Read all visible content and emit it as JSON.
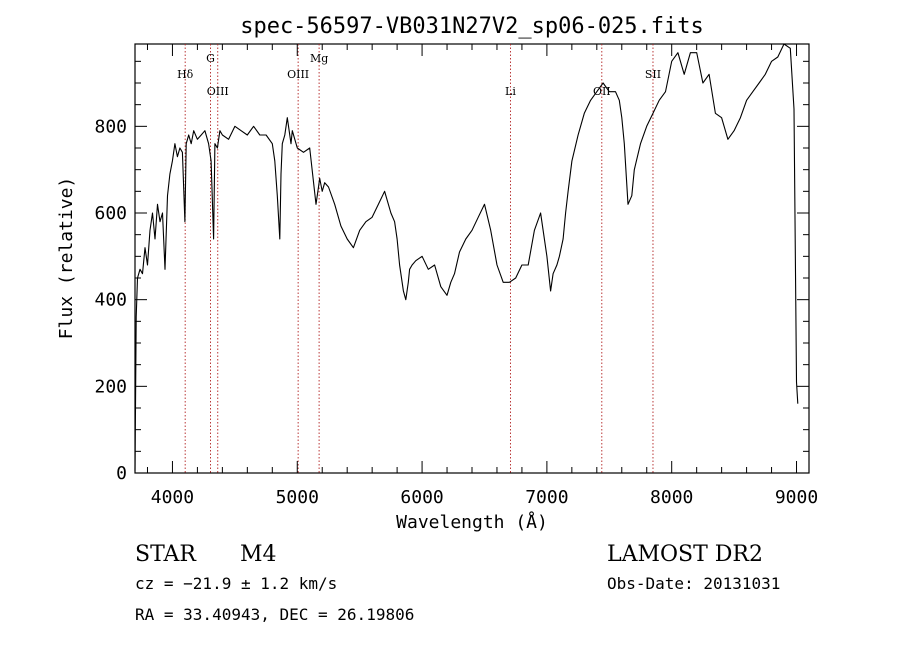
{
  "chart_data": {
    "type": "line",
    "title": "spec-56597-VB031N27V2_sp06-025.fits",
    "xlabel": "Wavelength (Å)",
    "ylabel": "Flux (relative)",
    "xlim": [
      3700,
      9100
    ],
    "ylim": [
      0,
      990
    ],
    "x_ticks": [
      4000,
      5000,
      6000,
      7000,
      8000,
      9000
    ],
    "x_tick_labels": [
      "4000",
      "5000",
      "6000",
      "7000",
      "8000",
      "9000"
    ],
    "y_ticks": [
      0,
      200,
      400,
      600,
      800
    ],
    "y_tick_labels": [
      "0",
      "200",
      "400",
      "600",
      "800"
    ],
    "grid": false,
    "line_color": "#000000",
    "marker_color": "#b22222",
    "lines": [
      {
        "label": "Hδ",
        "x": 4102,
        "tier": "high"
      },
      {
        "label": "G",
        "x": 4305,
        "tier": "top"
      },
      {
        "label": "OIII",
        "x": 4363,
        "tier": "mid"
      },
      {
        "label": "OIII",
        "x": 5007,
        "tier": "high"
      },
      {
        "label": "Mg",
        "x": 5175,
        "tier": "top"
      },
      {
        "label": "Li",
        "x": 6708,
        "tier": "mid"
      },
      {
        "label": "OII",
        "x": 7440,
        "tier": "mid"
      },
      {
        "label": "SII",
        "x": 7850,
        "tier": "high"
      }
    ],
    "series": [
      {
        "x": [
          3700,
          3710,
          3720,
          3740,
          3760,
          3780,
          3800,
          3820,
          3840,
          3860,
          3880,
          3900,
          3920,
          3940,
          3960,
          3980,
          4000,
          4020,
          4040,
          4060,
          4080,
          4100,
          4110,
          4130,
          4150,
          4170,
          4200,
          4230,
          4260,
          4290,
          4310,
          4330,
          4340,
          4360,
          4380,
          4400,
          4450,
          4500,
          4550,
          4600,
          4650,
          4700,
          4750,
          4800,
          4820,
          4840,
          4860,
          4870,
          4880,
          4900,
          4920,
          4950,
          4960,
          5000,
          5050,
          5100,
          5150,
          5170,
          5180,
          5200,
          5220,
          5250,
          5300,
          5350,
          5400,
          5450,
          5500,
          5550,
          5600,
          5650,
          5700,
          5750,
          5780,
          5800,
          5820,
          5850,
          5870,
          5890,
          5900,
          5920,
          5950,
          6000,
          6050,
          6100,
          6150,
          6200,
          6230,
          6260,
          6300,
          6350,
          6400,
          6450,
          6500,
          6550,
          6600,
          6650,
          6700,
          6750,
          6800,
          6850,
          6900,
          6950,
          7000,
          7030,
          7050,
          7080,
          7100,
          7130,
          7150,
          7170,
          7200,
          7250,
          7300,
          7350,
          7400,
          7450,
          7500,
          7550,
          7580,
          7600,
          7620,
          7650,
          7680,
          7700,
          7750,
          7800,
          7850,
          7900,
          7950,
          8000,
          8050,
          8100,
          8150,
          8200,
          8250,
          8300,
          8350,
          8400,
          8450,
          8500,
          8550,
          8600,
          8650,
          8700,
          8750,
          8800,
          8850,
          8900,
          8950,
          8980,
          9000,
          9010
        ],
        "y": [
          5,
          360,
          450,
          470,
          460,
          520,
          480,
          560,
          600,
          540,
          620,
          580,
          600,
          470,
          640,
          690,
          720,
          760,
          730,
          750,
          740,
          580,
          760,
          780,
          760,
          790,
          770,
          780,
          790,
          760,
          720,
          540,
          760,
          750,
          790,
          780,
          770,
          800,
          790,
          780,
          800,
          780,
          780,
          760,
          720,
          640,
          540,
          690,
          760,
          780,
          820,
          760,
          790,
          750,
          740,
          750,
          620,
          660,
          680,
          650,
          670,
          660,
          620,
          570,
          540,
          520,
          560,
          580,
          590,
          620,
          650,
          600,
          580,
          540,
          480,
          420,
          400,
          440,
          470,
          480,
          490,
          500,
          470,
          480,
          430,
          410,
          440,
          460,
          510,
          540,
          560,
          590,
          620,
          560,
          480,
          440,
          440,
          450,
          480,
          480,
          560,
          600,
          500,
          420,
          460,
          480,
          500,
          540,
          600,
          650,
          720,
          780,
          830,
          860,
          880,
          900,
          880,
          880,
          860,
          820,
          760,
          620,
          640,
          700,
          760,
          800,
          830,
          860,
          880,
          950,
          970,
          920,
          970,
          970,
          900,
          920,
          830,
          820,
          770,
          790,
          820,
          860,
          880,
          900,
          920,
          950,
          960,
          990,
          980,
          840,
          210,
          160
        ]
      }
    ]
  },
  "info": {
    "class_label": "STAR",
    "subclass": "M4",
    "cz": "cz = −21.9 ± 1.2 km/s",
    "coords": "RA =  33.40943, DEC =  26.19806",
    "survey": "LAMOST DR2",
    "obs_date": "Obs-Date: 20131031"
  }
}
